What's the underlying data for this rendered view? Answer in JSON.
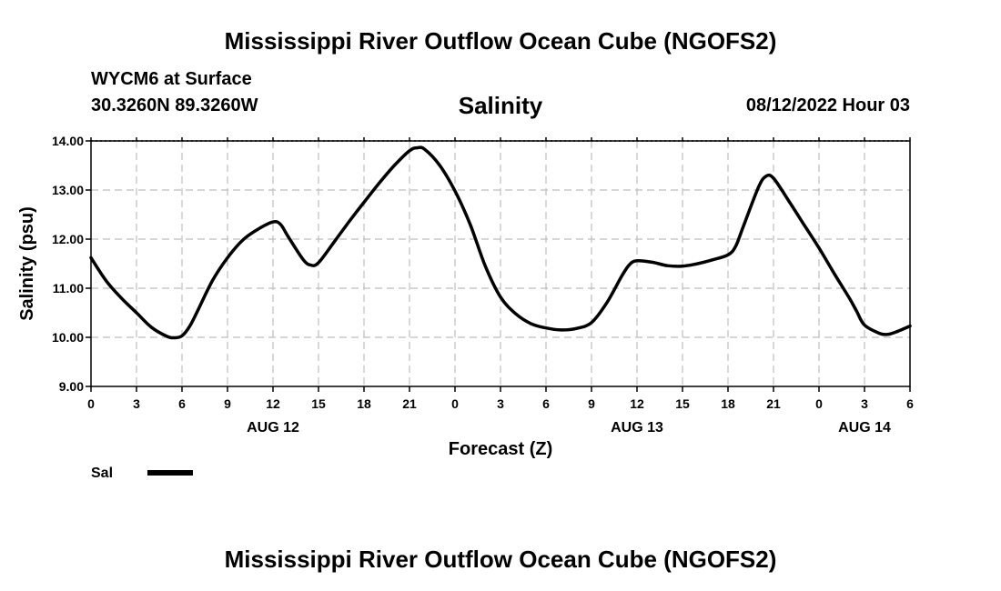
{
  "header": {
    "title": "Mississippi River Outflow Ocean Cube (NGOFS2)",
    "station": "WYCM6 at Surface",
    "coords": "30.3260N  89.3260W",
    "timestamp": "08/12/2022 Hour 03"
  },
  "footer": {
    "title": "Mississippi River Outflow Ocean Cube (NGOFS2)"
  },
  "chart_data": {
    "type": "line",
    "title": "Salinity",
    "xlabel": "Forecast (Z)",
    "ylabel": "Salinity (psu)",
    "xlim": [
      0,
      54
    ],
    "ylim": [
      9,
      14
    ],
    "grid": true,
    "yticks": [
      "9.00",
      "10.00",
      "11.00",
      "12.00",
      "13.00",
      "14.00"
    ],
    "xtick_values": [
      0,
      3,
      6,
      9,
      12,
      15,
      18,
      21,
      24,
      27,
      30,
      33,
      36,
      39,
      42,
      45,
      48,
      51,
      54
    ],
    "xtick_labels": [
      "0",
      "3",
      "6",
      "9",
      "12",
      "15",
      "18",
      "21",
      "0",
      "3",
      "6",
      "9",
      "12",
      "15",
      "18",
      "21",
      "0",
      "3",
      "6"
    ],
    "date_labels": [
      {
        "x": 12,
        "label": "AUG 12"
      },
      {
        "x": 36,
        "label": "AUG 13"
      },
      {
        "x": 51,
        "label": "AUG 14"
      }
    ],
    "legend": {
      "placement": "bottom-left",
      "label": "Sal"
    },
    "series": [
      {
        "name": "Sal",
        "color": "#000000",
        "x": [
          0,
          1,
          2,
          3,
          4,
          5,
          5.5,
          6,
          6.5,
          7,
          8,
          9,
          10,
          11,
          12,
          12.5,
          13,
          14,
          14.5,
          15,
          16,
          17,
          18,
          19,
          20,
          21,
          21.5,
          22,
          23,
          24,
          25,
          26,
          27,
          28,
          29,
          30,
          31,
          32,
          33,
          34,
          35,
          35.5,
          36,
          37,
          38,
          39,
          40,
          41,
          42,
          42.5,
          43,
          44,
          44.5,
          45,
          46,
          47,
          48,
          49,
          50,
          50.5,
          51,
          52,
          52.5,
          53,
          54
        ],
        "y": [
          11.62,
          11.15,
          10.8,
          10.5,
          10.2,
          10.02,
          9.99,
          10.03,
          10.22,
          10.52,
          11.15,
          11.62,
          11.98,
          12.2,
          12.35,
          12.3,
          12.05,
          11.58,
          11.47,
          11.52,
          11.93,
          12.35,
          12.75,
          13.14,
          13.5,
          13.8,
          13.86,
          13.83,
          13.5,
          12.98,
          12.3,
          11.45,
          10.82,
          10.48,
          10.28,
          10.19,
          10.15,
          10.18,
          10.3,
          10.7,
          11.25,
          11.48,
          11.56,
          11.53,
          11.46,
          11.45,
          11.5,
          11.58,
          11.68,
          11.85,
          12.25,
          13.05,
          13.28,
          13.24,
          12.78,
          12.3,
          11.82,
          11.3,
          10.8,
          10.52,
          10.25,
          10.08,
          10.06,
          10.1,
          10.23
        ]
      }
    ]
  }
}
